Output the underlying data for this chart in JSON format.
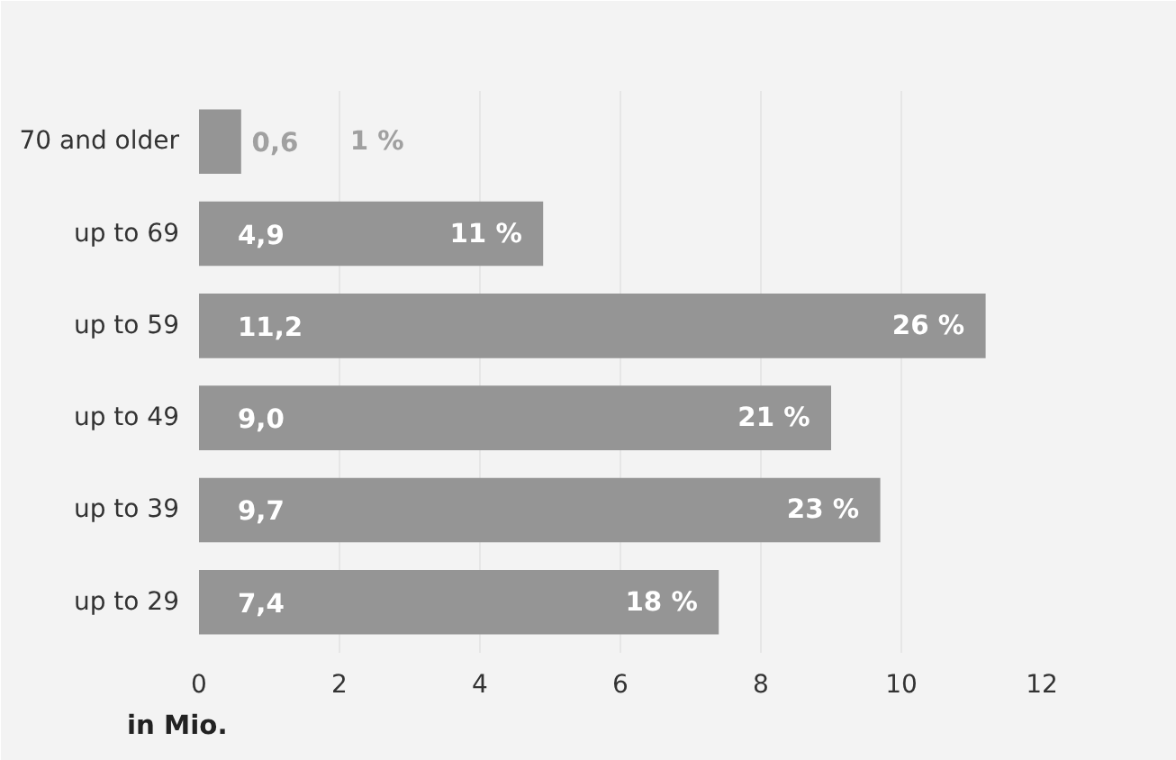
{
  "chart_data": {
    "type": "bar",
    "orientation": "horizontal",
    "xlabel": "in Mio.",
    "categories": [
      "70 and older",
      "up to 69",
      "up to 59",
      "up to 49",
      "up to 39",
      "up to 29"
    ],
    "values": [
      0.6,
      4.9,
      11.2,
      9.0,
      9.7,
      7.4
    ],
    "value_labels": [
      "0,6",
      "4,9",
      "11,2",
      "9,0",
      "9,7",
      "7,4"
    ],
    "color": "#959595",
    "xlim": [
      0,
      12
    ],
    "xticks": [
      0,
      2,
      4,
      6,
      8,
      10,
      12
    ],
    "grid": "x",
    "annotations": [
      "1 %",
      "11 %",
      "26 %",
      "21 %",
      "23 %",
      "18 %"
    ]
  }
}
